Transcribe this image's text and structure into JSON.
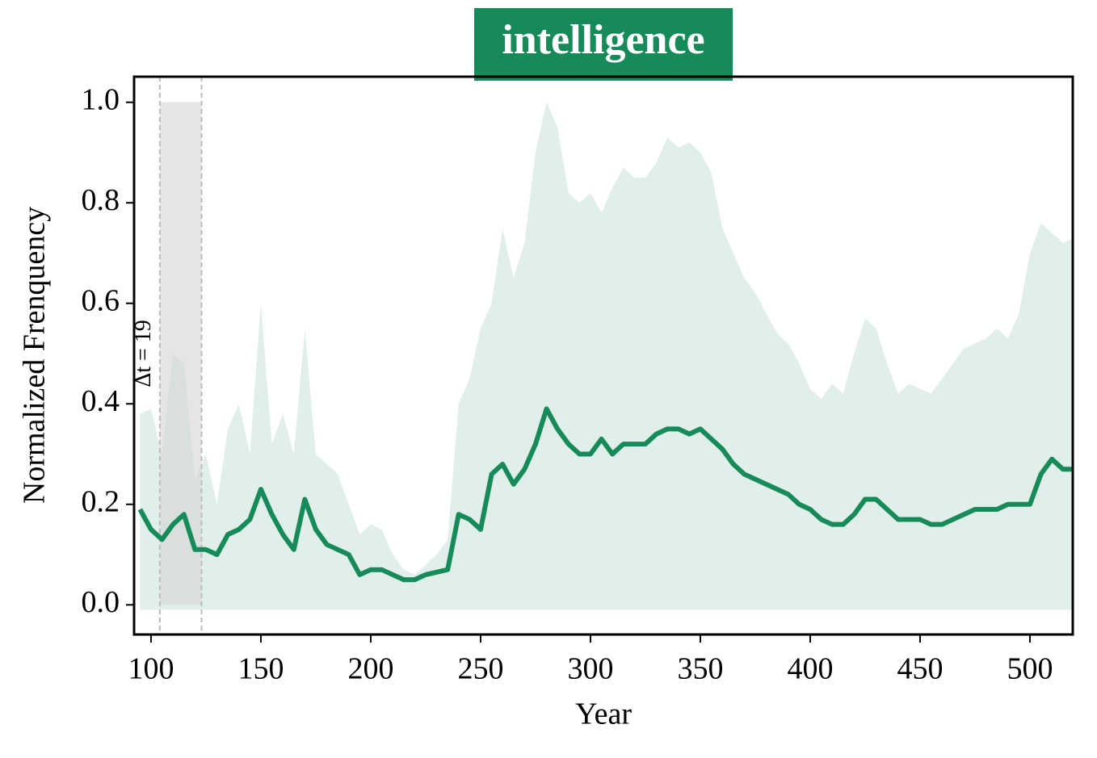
{
  "chart_data": {
    "type": "line",
    "title": "intelligence",
    "x_label": "Year",
    "y_label": "Normalized Frenquency",
    "xlim": [
      92.3,
      519.5
    ],
    "ylim": [
      -0.059,
      1.051
    ],
    "xticks": [
      100,
      150,
      200,
      250,
      300,
      350,
      400,
      450,
      500
    ],
    "yticks": [
      {
        "value": 0,
        "label": "0.0"
      },
      {
        "value": 0.2,
        "label": "0.2"
      },
      {
        "value": 0.4,
        "label": "0.4"
      },
      {
        "value": 0.6,
        "label": "0.6"
      },
      {
        "value": 0.8,
        "label": "0.8"
      },
      {
        "value": 1.0,
        "label": "1.0"
      }
    ],
    "x": [
      95,
      100,
      105,
      110,
      115,
      120,
      125,
      130,
      135,
      140,
      145,
      150,
      155,
      160,
      165,
      170,
      175,
      180,
      185,
      190,
      195,
      200,
      205,
      210,
      215,
      220,
      225,
      230,
      235,
      240,
      245,
      250,
      255,
      260,
      265,
      270,
      275,
      280,
      285,
      290,
      295,
      300,
      305,
      310,
      315,
      320,
      325,
      330,
      335,
      340,
      345,
      350,
      355,
      360,
      365,
      370,
      375,
      380,
      385,
      390,
      395,
      400,
      405,
      410,
      415,
      420,
      425,
      430,
      435,
      440,
      445,
      450,
      455,
      460,
      465,
      470,
      475,
      480,
      485,
      490,
      495,
      500,
      505,
      510,
      515,
      520
    ],
    "values": [
      0.19,
      0.15,
      0.13,
      0.16,
      0.18,
      0.11,
      0.11,
      0.1,
      0.14,
      0.15,
      0.17,
      0.23,
      0.18,
      0.14,
      0.11,
      0.21,
      0.15,
      0.12,
      0.11,
      0.1,
      0.06,
      0.07,
      0.07,
      0.06,
      0.05,
      0.05,
      0.06,
      0.065,
      0.07,
      0.18,
      0.17,
      0.15,
      0.26,
      0.28,
      0.24,
      0.27,
      0.32,
      0.39,
      0.35,
      0.32,
      0.3,
      0.3,
      0.33,
      0.3,
      0.32,
      0.32,
      0.32,
      0.34,
      0.35,
      0.35,
      0.34,
      0.35,
      0.33,
      0.31,
      0.28,
      0.26,
      0.25,
      0.24,
      0.23,
      0.22,
      0.2,
      0.19,
      0.17,
      0.16,
      0.16,
      0.18,
      0.21,
      0.21,
      0.19,
      0.17,
      0.17,
      0.17,
      0.16,
      0.16,
      0.17,
      0.18,
      0.19,
      0.19,
      0.19,
      0.2,
      0.2,
      0.2,
      0.26,
      0.29,
      0.27,
      0.27
    ],
    "color": "#178a5a",
    "band_upper": [
      0.38,
      0.39,
      0.3,
      0.5,
      0.48,
      0.25,
      0.3,
      0.2,
      0.35,
      0.4,
      0.3,
      0.6,
      0.32,
      0.38,
      0.3,
      0.55,
      0.3,
      0.28,
      0.26,
      0.2,
      0.14,
      0.16,
      0.15,
      0.1,
      0.07,
      0.06,
      0.08,
      0.1,
      0.13,
      0.4,
      0.45,
      0.55,
      0.6,
      0.75,
      0.65,
      0.72,
      0.9,
      1.0,
      0.95,
      0.82,
      0.8,
      0.82,
      0.78,
      0.83,
      0.87,
      0.85,
      0.85,
      0.88,
      0.93,
      0.91,
      0.92,
      0.9,
      0.86,
      0.75,
      0.7,
      0.65,
      0.62,
      0.58,
      0.54,
      0.52,
      0.48,
      0.43,
      0.41,
      0.44,
      0.42,
      0.5,
      0.57,
      0.55,
      0.48,
      0.42,
      0.44,
      0.43,
      0.42,
      0.45,
      0.48,
      0.51,
      0.52,
      0.53,
      0.55,
      0.53,
      0.58,
      0.7,
      0.76,
      0.74,
      0.72,
      0.73
    ],
    "band_lower": -0.01,
    "band_color": "#e0efe9",
    "span": [
      104,
      123
    ],
    "span_top": 1.0,
    "span_color": "#d3d3d3",
    "annotation": "Δt = 19"
  }
}
